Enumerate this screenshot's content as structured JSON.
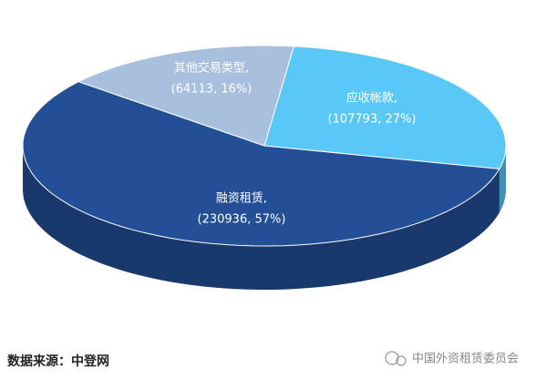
{
  "chart_data": {
    "type": "pie3d",
    "categories": [
      "应收帐款,",
      "融资租赁,",
      "其他交易类型,"
    ],
    "values": [
      107793,
      230936,
      64113
    ],
    "value_labels": [
      "(107793, 27%)",
      "(230936, 57%)",
      "(64113, 16%)"
    ],
    "colors": [
      "#5ac8f6",
      "#234f96",
      "#a8bfde"
    ]
  },
  "source": "数据来源：中登网",
  "watermark": "中国外资租赁委员会"
}
